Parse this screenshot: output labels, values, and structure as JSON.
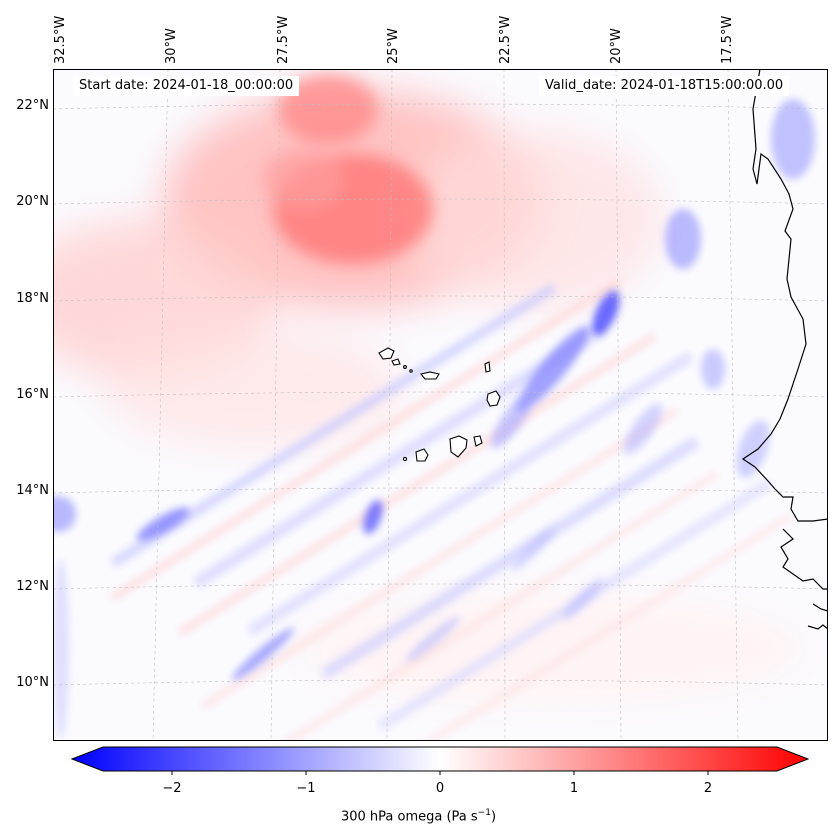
{
  "map": {
    "start_date": "Start date: 2024-01-18_00:00:00",
    "valid_date": "Valid_date: 2024-01-18T15:00:00.00",
    "lon_labels": [
      "32.5°W",
      "30°W",
      "27.5°W",
      "25°W",
      "22.5°W",
      "20°W",
      "17.5°W"
    ],
    "lat_labels": [
      "22°N",
      "20°N",
      "18°N",
      "16°N",
      "14°N",
      "12°N",
      "10°N"
    ],
    "colors": {
      "negative": "#0000ff",
      "zero": "#ffffff",
      "positive": "#ff0000",
      "coast": "#000000"
    }
  },
  "colorbar": {
    "title": "300 hPa omega (Pa s",
    "title_superscript": "−1",
    "title_end": ")",
    "ticks": [
      "−2",
      "−1",
      "0",
      "1",
      "2"
    ],
    "range": [
      -2.7,
      2.7
    ]
  }
}
